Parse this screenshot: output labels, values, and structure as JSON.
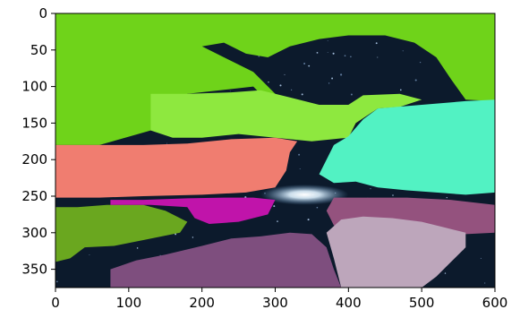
{
  "chart_data": {
    "type": "heatmap",
    "title": "",
    "xlabel": "",
    "ylabel": "",
    "xlim": [
      0,
      600
    ],
    "ylim": [
      375,
      0
    ],
    "grid": false,
    "x_ticks": [
      0,
      100,
      200,
      300,
      400,
      500,
      600
    ],
    "y_ticks": [
      0,
      50,
      100,
      150,
      200,
      250,
      300,
      350
    ],
    "image_kind": "segmentation mask overlaid on night-sky photo",
    "segments": [
      {
        "color": "#6fd31a",
        "region": "top sky (upper band)"
      },
      {
        "color": "#8ee83f",
        "region": "middle left band"
      },
      {
        "color": "#f07d70",
        "region": "left horizon band"
      },
      {
        "color": "#52f2c3",
        "region": "right horizon band"
      },
      {
        "color": "#6aa71f",
        "region": "lower left"
      },
      {
        "color": "#c014aa",
        "region": "center lower"
      },
      {
        "color": "#94527e",
        "region": "lower right"
      },
      {
        "color": "#7e4e7e",
        "region": "bottom center"
      },
      {
        "color": "#bda6bb",
        "region": "bottom right"
      },
      {
        "color": "#0c1a2c",
        "region": "starry sky / dark terrain (unlabeled)"
      }
    ]
  }
}
